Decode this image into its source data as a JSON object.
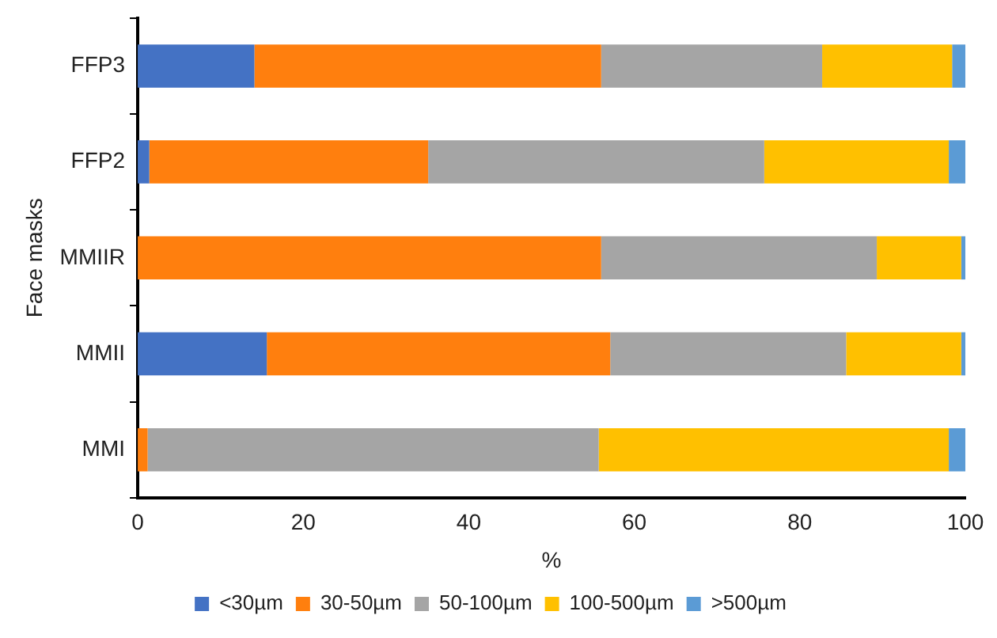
{
  "chart_data": {
    "type": "bar",
    "orientation": "horizontal",
    "stacked": true,
    "xlabel": "%",
    "ylabel": "Face masks",
    "categories": [
      "FFP3",
      "FFP2",
      "MMIIR",
      "MMII",
      "MMI"
    ],
    "series": [
      {
        "name": "<30µm",
        "color": "#4472c4",
        "values": [
          14.1,
          1.4,
          0,
          15.6,
          0
        ]
      },
      {
        "name": "30-50µm",
        "color": "#ff7f0e",
        "values": [
          41.9,
          33.7,
          56,
          41.5,
          1.2
        ]
      },
      {
        "name": "50-100µm",
        "color": "#a5a5a5",
        "values": [
          26.7,
          40.6,
          33.3,
          28.5,
          54.5
        ]
      },
      {
        "name": "100-500µm",
        "color": "#ffc000",
        "values": [
          15.7,
          22.3,
          10.2,
          13.9,
          42.3
        ]
      },
      {
        "name": ">500µm",
        "color": "#5b9bd5",
        "values": [
          1.6,
          2,
          0.5,
          0.5,
          2
        ]
      }
    ],
    "xlim": [
      0,
      100
    ],
    "xticks": [
      0,
      20,
      40,
      60,
      80,
      100
    ],
    "grid": false,
    "legend": "bottom"
  }
}
